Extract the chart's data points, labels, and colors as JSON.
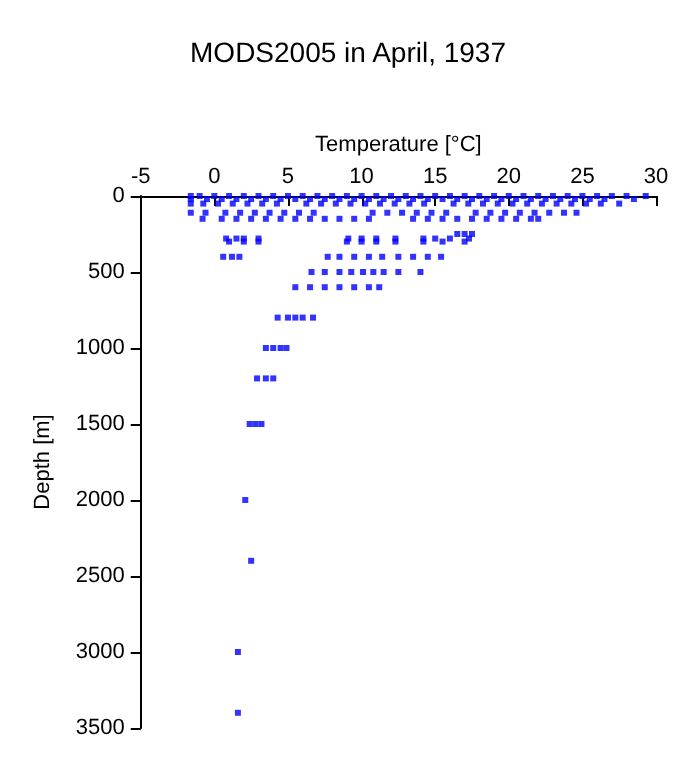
{
  "chart_data": {
    "type": "scatter",
    "title": "MODS2005 in April, 1937",
    "xlabel": "Temperature [°C]",
    "ylabel": "Depth [m]",
    "xlim": [
      -5,
      30
    ],
    "xticks": [
      -5,
      0,
      5,
      10,
      15,
      20,
      25,
      30
    ],
    "ylim": [
      3500,
      0
    ],
    "yticks": [
      0,
      500,
      1000,
      1500,
      2000,
      2500,
      3000,
      3500
    ],
    "grid": false,
    "marker": "square",
    "series": [
      {
        "color": "#0000ff",
        "x": [
          -1.6,
          -1,
          0,
          1,
          2,
          3,
          4,
          5,
          6,
          7,
          8,
          9,
          10,
          11,
          12,
          13,
          14,
          15,
          16,
          17,
          18,
          19,
          20,
          21,
          22,
          23,
          24,
          25,
          26,
          27,
          28,
          29.3,
          -1.6,
          -0.5,
          0.5,
          1.5,
          2.5,
          3.5,
          4.5,
          5.5,
          6.5,
          7.5,
          8.5,
          9.5,
          10.5,
          11.5,
          12.5,
          13.5,
          14.5,
          15.5,
          16.5,
          17.5,
          18.5,
          19.5,
          20.5,
          21.5,
          22.5,
          23.5,
          24.5,
          25.5,
          26.5,
          28.5,
          -1.6,
          -0.75,
          0.25,
          1.25,
          2.25,
          3.25,
          4.25,
          6.25,
          7.25,
          8.25,
          9.25,
          10.25,
          11.25,
          12.25,
          13.25,
          14.25,
          16.25,
          17.25,
          18.25,
          19.25,
          20.25,
          21.25,
          22.25,
          23.25,
          24.25,
          25.25,
          26.25,
          27.5,
          -1.6,
          -0.6,
          0.75,
          1.75,
          2.75,
          3.75,
          4.75,
          5.75,
          6.75,
          10.75,
          11.75,
          12.75,
          13.75,
          14.75,
          15.75,
          17.75,
          18.75,
          19.75,
          20.75,
          21.75,
          22.75,
          23.75,
          24.6,
          -0.8,
          0.5,
          1.5,
          2.5,
          3.5,
          4.5,
          5.5,
          6.5,
          7.5,
          8.5,
          9.5,
          10.5,
          13.5,
          14.5,
          15.5,
          16.5,
          17.5,
          18.5,
          19.5,
          20.5,
          21.5,
          22,
          16.5,
          17,
          17.5,
          0.8,
          1.5,
          2,
          3,
          9.1,
          10,
          11,
          12.3,
          14.2,
          15,
          16,
          17.3,
          1,
          2,
          3,
          9,
          10,
          11,
          12.3,
          14.2,
          15.5,
          17,
          0.6,
          1.2,
          1.7,
          7.7,
          8.5,
          9.5,
          10.5,
          11.4,
          12.5,
          13.5,
          14.5,
          15.4,
          6.6,
          7.5,
          8.5,
          9.3,
          10.1,
          10.8,
          11.5,
          12.5,
          14,
          5.5,
          6.5,
          7.5,
          8.5,
          9.5,
          10.5,
          11.2,
          4.3,
          5,
          5.5,
          6,
          6.7,
          3.5,
          4,
          4.5,
          4.9,
          2.9,
          3.5,
          4,
          2.4,
          2.8,
          3.2,
          2.1,
          2.5,
          1.6,
          1.6
        ],
        "values": [
          0,
          0,
          0,
          0,
          0,
          0,
          0,
          0,
          0,
          0,
          0,
          0,
          0,
          0,
          0,
          0,
          0,
          0,
          0,
          0,
          0,
          0,
          0,
          0,
          0,
          0,
          0,
          0,
          0,
          0,
          0,
          0,
          20,
          20,
          20,
          20,
          20,
          20,
          20,
          20,
          20,
          20,
          20,
          20,
          20,
          20,
          20,
          20,
          20,
          20,
          20,
          20,
          20,
          20,
          20,
          20,
          20,
          20,
          20,
          20,
          20,
          20,
          50,
          50,
          50,
          50,
          50,
          50,
          50,
          50,
          50,
          50,
          50,
          50,
          50,
          50,
          50,
          50,
          50,
          50,
          50,
          50,
          50,
          50,
          50,
          50,
          50,
          50,
          50,
          50,
          110,
          110,
          110,
          110,
          110,
          110,
          110,
          110,
          110,
          110,
          110,
          110,
          110,
          110,
          110,
          110,
          110,
          110,
          110,
          110,
          110,
          110,
          110,
          150,
          150,
          150,
          150,
          150,
          150,
          150,
          150,
          150,
          150,
          150,
          150,
          150,
          150,
          150,
          150,
          150,
          150,
          150,
          150,
          150,
          150,
          250,
          250,
          250,
          280,
          280,
          280,
          280,
          280,
          280,
          280,
          280,
          280,
          280,
          280,
          280,
          300,
          300,
          300,
          300,
          300,
          300,
          300,
          300,
          300,
          300,
          400,
          400,
          400,
          400,
          400,
          400,
          400,
          400,
          400,
          400,
          400,
          400,
          500,
          500,
          500,
          500,
          500,
          500,
          500,
          500,
          500,
          600,
          600,
          600,
          600,
          600,
          600,
          600,
          800,
          800,
          800,
          800,
          800,
          1000,
          1000,
          1000,
          1000,
          1200,
          1200,
          1200,
          1500,
          1500,
          1500,
          2000,
          2400,
          3000,
          3400
        ]
      }
    ]
  }
}
